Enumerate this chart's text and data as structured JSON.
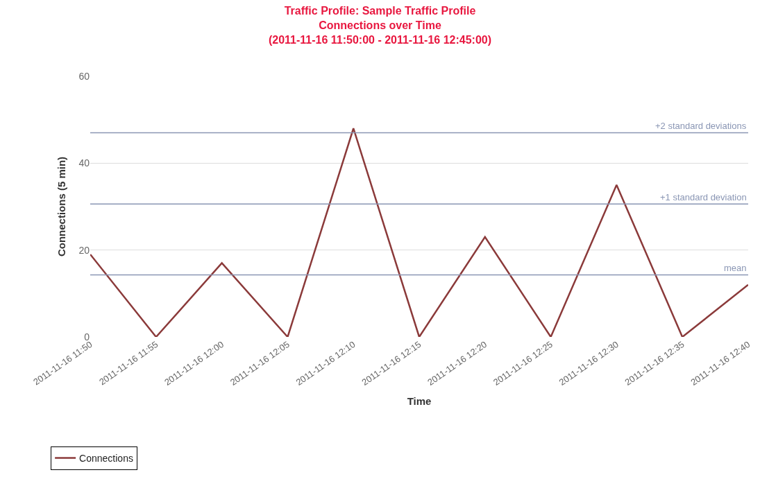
{
  "chart_data": {
    "type": "line",
    "title": "Traffic Profile: Sample Traffic Profile\nConnections over Time\n(2011-11-16 11:50:00 - 2011-11-16 12:45:00)",
    "xlabel": "Time",
    "ylabel": "Connections (5 min)",
    "categories": [
      "2011-11-16 11:50",
      "2011-11-16 11:55",
      "2011-11-16 12:00",
      "2011-11-16 12:05",
      "2011-11-16 12:10",
      "2011-11-16 12:15",
      "2011-11-16 12:20",
      "2011-11-16 12:25",
      "2011-11-16 12:30",
      "2011-11-16 12:35",
      "2011-11-16 12:40"
    ],
    "series": [
      {
        "name": "Connections",
        "color": "#8b3a3a",
        "values": [
          19,
          0,
          17,
          0,
          48,
          0,
          23,
          0,
          35,
          0,
          12
        ]
      }
    ],
    "ylim": [
      0,
      60
    ],
    "yticks": [
      0,
      20,
      40,
      60
    ],
    "ref_lines": [
      {
        "axis": "y",
        "value": 14.3,
        "label": "mean",
        "color": "#8a96b4"
      },
      {
        "axis": "y",
        "value": 30.6,
        "label": "+1 standard deviation",
        "color": "#8a96b4"
      },
      {
        "axis": "y",
        "value": 47,
        "label": "+2 standard deviations",
        "color": "#8a96b4"
      }
    ],
    "grid": "y",
    "legend": "bottom left",
    "marker": "none",
    "line_style": "solid"
  }
}
